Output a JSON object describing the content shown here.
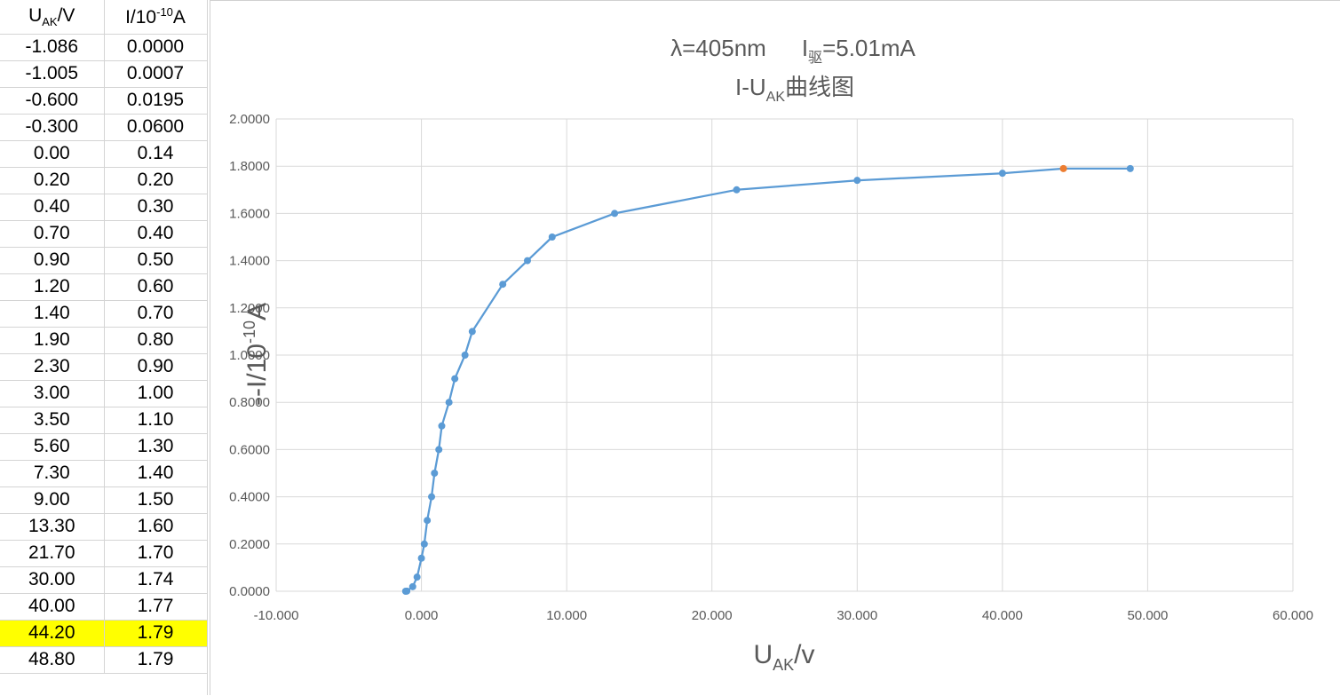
{
  "table": {
    "headers": [
      {
        "main": "U",
        "sub": "AK",
        "rest": "/V"
      },
      {
        "main": "I/10",
        "sup": "-10",
        "rest": "A"
      }
    ],
    "rows": [
      [
        "-1.086",
        "0.0000"
      ],
      [
        "-1.005",
        "0.0007"
      ],
      [
        "-0.600",
        "0.0195"
      ],
      [
        "-0.300",
        "0.0600"
      ],
      [
        "0.00",
        "0.14"
      ],
      [
        "0.20",
        "0.20"
      ],
      [
        "0.40",
        "0.30"
      ],
      [
        "0.70",
        "0.40"
      ],
      [
        "0.90",
        "0.50"
      ],
      [
        "1.20",
        "0.60"
      ],
      [
        "1.40",
        "0.70"
      ],
      [
        "1.90",
        "0.80"
      ],
      [
        "2.30",
        "0.90"
      ],
      [
        "3.00",
        "1.00"
      ],
      [
        "3.50",
        "1.10"
      ],
      [
        "5.60",
        "1.30"
      ],
      [
        "7.30",
        "1.40"
      ],
      [
        "9.00",
        "1.50"
      ],
      [
        "13.30",
        "1.60"
      ],
      [
        "21.70",
        "1.70"
      ],
      [
        "30.00",
        "1.74"
      ],
      [
        "40.00",
        "1.77"
      ],
      [
        "44.20",
        "1.79"
      ],
      [
        "48.80",
        "1.79"
      ]
    ],
    "highlight_row": 22,
    "highlight_color": "#ffff00"
  },
  "chart_data": {
    "type": "scatter",
    "title_line1": {
      "lambda": "λ=405nm",
      "drive_main": "I",
      "drive_sub": "驱",
      "drive_rest": "=5.01mA"
    },
    "title_line2": {
      "main": "I-U",
      "sub": "AK",
      "rest": "曲线图"
    },
    "xlabel": {
      "main": "U",
      "sub": "AK",
      "rest": "/v"
    },
    "ylabel": {
      "main": "--I/10",
      "sup": "-10",
      "rest": "A"
    },
    "xlim": [
      -10,
      60
    ],
    "ylim": [
      0,
      2
    ],
    "x_ticks": [
      "-10.000",
      "0.000",
      "10.000",
      "20.000",
      "30.000",
      "40.000",
      "50.000",
      "60.000"
    ],
    "y_ticks": [
      "0.0000",
      "0.2000",
      "0.4000",
      "0.6000",
      "0.8000",
      "1.0000",
      "1.2000",
      "1.4000",
      "1.6000",
      "1.8000",
      "2.0000"
    ],
    "grid": true,
    "line_color": "#5b9bd5",
    "highlight_color": "#ed7d31",
    "highlight_index": 22,
    "points": [
      [
        -1.086,
        0.0
      ],
      [
        -1.005,
        0.0007
      ],
      [
        -0.6,
        0.0195
      ],
      [
        -0.3,
        0.06
      ],
      [
        0.0,
        0.14
      ],
      [
        0.2,
        0.2
      ],
      [
        0.4,
        0.3
      ],
      [
        0.7,
        0.4
      ],
      [
        0.9,
        0.5
      ],
      [
        1.2,
        0.6
      ],
      [
        1.4,
        0.7
      ],
      [
        1.9,
        0.8
      ],
      [
        2.3,
        0.9
      ],
      [
        3.0,
        1.0
      ],
      [
        3.5,
        1.1
      ],
      [
        5.6,
        1.3
      ],
      [
        7.3,
        1.4
      ],
      [
        9.0,
        1.5
      ],
      [
        13.3,
        1.6
      ],
      [
        21.7,
        1.7
      ],
      [
        30.0,
        1.74
      ],
      [
        40.0,
        1.77
      ],
      [
        44.2,
        1.79
      ],
      [
        48.8,
        1.79
      ]
    ]
  }
}
